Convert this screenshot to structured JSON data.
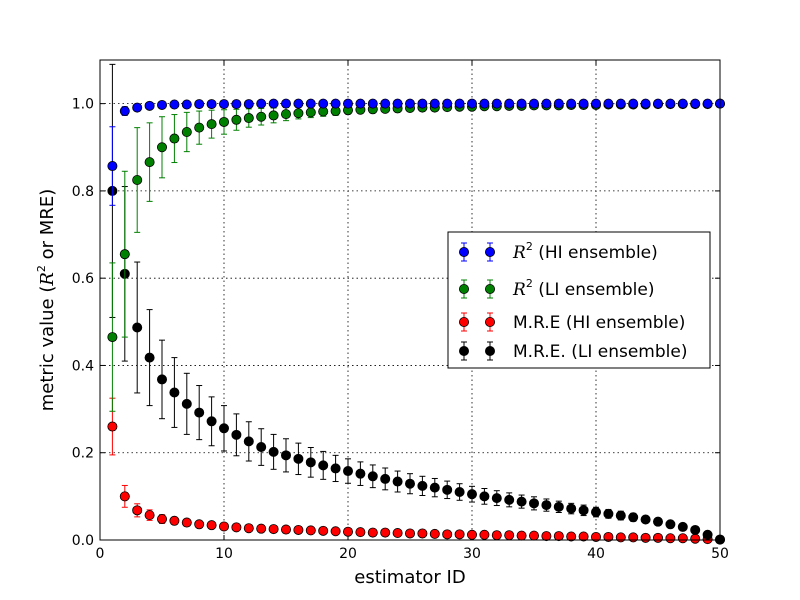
{
  "chart_data": {
    "type": "scatter",
    "title": "",
    "xlabel": "estimator ID",
    "ylabel_parts": {
      "prefix": "metric value (",
      "var": "R",
      "sup": "2",
      "suffix": "  or MRE)"
    },
    "xlim": [
      0,
      50
    ],
    "ylim": [
      0.0,
      1.1
    ],
    "xticks": [
      0,
      10,
      20,
      30,
      40,
      50
    ],
    "yticks": [
      0.0,
      0.2,
      0.4,
      0.6,
      0.8,
      1.0
    ],
    "x_tick_labels": [
      "0",
      "10",
      "20",
      "30",
      "40",
      "50"
    ],
    "y_tick_labels": [
      "0.0",
      "0.2",
      "0.4",
      "0.6",
      "0.8",
      "1.0"
    ],
    "grid": true,
    "legend_position": "center-right",
    "x": [
      1,
      2,
      3,
      4,
      5,
      6,
      7,
      8,
      9,
      10,
      11,
      12,
      13,
      14,
      15,
      16,
      17,
      18,
      19,
      20,
      21,
      22,
      23,
      24,
      25,
      26,
      27,
      28,
      29,
      30,
      31,
      32,
      33,
      34,
      35,
      36,
      37,
      38,
      39,
      40,
      41,
      42,
      43,
      44,
      45,
      46,
      47,
      48,
      49,
      50
    ],
    "series": [
      {
        "key": "r2_hi",
        "name": "",
        "legend_parts": {
          "var": "R",
          "sup": "2",
          "rest": "  (HI ensemble)"
        },
        "color": "#0000ff",
        "values": [
          0.857,
          0.983,
          0.991,
          0.995,
          0.997,
          0.998,
          0.998,
          0.999,
          0.999,
          0.999,
          0.999,
          0.999,
          1.0,
          1.0,
          1.0,
          1.0,
          1.0,
          1.0,
          1.0,
          1.0,
          1.0,
          1.0,
          1.0,
          1.0,
          1.0,
          1.0,
          1.0,
          1.0,
          1.0,
          1.0,
          1.0,
          1.0,
          1.0,
          1.0,
          1.0,
          1.0,
          1.0,
          1.0,
          1.0,
          1.0,
          1.0,
          1.0,
          1.0,
          1.0,
          1.0,
          1.0,
          1.0,
          1.0,
          1.0,
          1.0
        ],
        "errors": [
          0.09,
          0.01,
          0.006,
          0.004,
          0.003,
          0.002,
          0.002,
          0.002,
          0.001,
          0.001,
          0.001,
          0.001,
          0.001,
          0.001,
          0.001,
          0.001,
          0.001,
          0.001,
          0.001,
          0.001,
          0.001,
          0.001,
          0.001,
          0.001,
          0.001,
          0.001,
          0.001,
          0.001,
          0.001,
          0.001,
          0.001,
          0.001,
          0.001,
          0.001,
          0.001,
          0.001,
          0.001,
          0.001,
          0.001,
          0.001,
          0.001,
          0.001,
          0.001,
          0.001,
          0.001,
          0.001,
          0.001,
          0.001,
          0.001,
          0.001
        ]
      },
      {
        "key": "r2_li",
        "name": "",
        "legend_parts": {
          "var": "R",
          "sup": "2",
          "rest": "  (LI ensemble)"
        },
        "color": "#008000",
        "values": [
          0.465,
          0.655,
          0.825,
          0.866,
          0.9,
          0.92,
          0.935,
          0.945,
          0.953,
          0.958,
          0.963,
          0.967,
          0.97,
          0.973,
          0.976,
          0.978,
          0.98,
          0.982,
          0.983,
          0.985,
          0.986,
          0.987,
          0.988,
          0.989,
          0.99,
          0.991,
          0.991,
          0.992,
          0.993,
          0.993,
          0.994,
          0.994,
          0.995,
          0.995,
          0.996,
          0.996,
          0.996,
          0.997,
          0.997,
          0.997,
          0.998,
          0.998,
          0.998,
          0.998,
          0.999,
          0.999,
          0.999,
          0.999,
          0.999,
          1.0
        ],
        "errors": [
          0.17,
          0.19,
          0.12,
          0.09,
          0.07,
          0.055,
          0.045,
          0.038,
          0.032,
          0.028,
          0.024,
          0.021,
          0.019,
          0.017,
          0.015,
          0.013,
          0.012,
          0.011,
          0.01,
          0.009,
          0.008,
          0.008,
          0.007,
          0.007,
          0.006,
          0.006,
          0.005,
          0.005,
          0.005,
          0.004,
          0.004,
          0.004,
          0.004,
          0.003,
          0.003,
          0.003,
          0.003,
          0.003,
          0.003,
          0.002,
          0.002,
          0.002,
          0.002,
          0.002,
          0.002,
          0.002,
          0.002,
          0.001,
          0.001,
          0.001
        ]
      },
      {
        "key": "mre_hi",
        "name": "M.R.E (HI ensemble)",
        "color": "#ff0000",
        "values": [
          0.26,
          0.1,
          0.068,
          0.057,
          0.048,
          0.044,
          0.04,
          0.036,
          0.034,
          0.031,
          0.029,
          0.027,
          0.026,
          0.025,
          0.024,
          0.023,
          0.022,
          0.021,
          0.02,
          0.019,
          0.018,
          0.017,
          0.017,
          0.016,
          0.015,
          0.015,
          0.014,
          0.013,
          0.013,
          0.012,
          0.012,
          0.011,
          0.011,
          0.01,
          0.01,
          0.009,
          0.009,
          0.008,
          0.008,
          0.007,
          0.007,
          0.006,
          0.006,
          0.005,
          0.005,
          0.004,
          0.004,
          0.003,
          0.002,
          0.001
        ],
        "errors": [
          0.065,
          0.025,
          0.015,
          0.012,
          0.01,
          0.008,
          0.007,
          0.006,
          0.005,
          0.005,
          0.004,
          0.004,
          0.004,
          0.003,
          0.003,
          0.003,
          0.003,
          0.003,
          0.003,
          0.002,
          0.002,
          0.002,
          0.002,
          0.002,
          0.002,
          0.002,
          0.002,
          0.002,
          0.002,
          0.002,
          0.002,
          0.002,
          0.002,
          0.002,
          0.002,
          0.002,
          0.002,
          0.002,
          0.002,
          0.002,
          0.002,
          0.002,
          0.002,
          0.002,
          0.002,
          0.002,
          0.002,
          0.002,
          0.002,
          0.002
        ]
      },
      {
        "key": "mre_li",
        "name": "M.R.E. (LI ensemble)",
        "color": "#000000",
        "values": [
          0.8,
          0.61,
          0.487,
          0.418,
          0.368,
          0.338,
          0.312,
          0.292,
          0.272,
          0.256,
          0.241,
          0.226,
          0.213,
          0.202,
          0.194,
          0.186,
          0.178,
          0.171,
          0.164,
          0.158,
          0.152,
          0.146,
          0.14,
          0.134,
          0.129,
          0.124,
          0.12,
          0.115,
          0.11,
          0.105,
          0.1,
          0.096,
          0.092,
          0.088,
          0.084,
          0.08,
          0.076,
          0.072,
          0.068,
          0.064,
          0.06,
          0.056,
          0.052,
          0.047,
          0.042,
          0.036,
          0.03,
          0.023,
          0.012,
          0.001
        ],
        "errors": [
          0.29,
          0.2,
          0.15,
          0.11,
          0.09,
          0.08,
          0.07,
          0.062,
          0.056,
          0.052,
          0.048,
          0.045,
          0.042,
          0.04,
          0.038,
          0.036,
          0.034,
          0.032,
          0.03,
          0.028,
          0.027,
          0.026,
          0.025,
          0.024,
          0.023,
          0.022,
          0.021,
          0.02,
          0.019,
          0.018,
          0.018,
          0.017,
          0.016,
          0.015,
          0.015,
          0.014,
          0.013,
          0.012,
          0.012,
          0.011,
          0.01,
          0.01,
          0.009,
          0.008,
          0.008,
          0.007,
          0.006,
          0.005,
          0.004,
          0.002
        ]
      }
    ]
  }
}
